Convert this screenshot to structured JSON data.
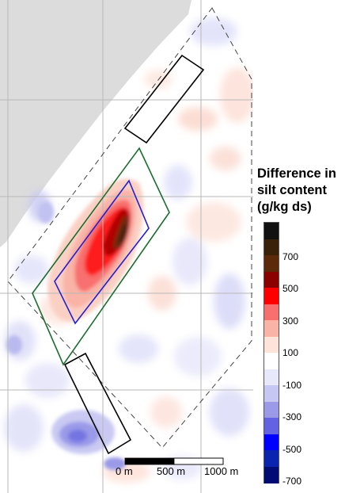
{
  "map": {
    "title_lines": [
      "Difference in",
      "silt content",
      "(g/kg ds)"
    ],
    "legend": {
      "ticks": [
        "700",
        "500",
        "300",
        "100",
        "-100",
        "-300",
        "-500",
        "-700"
      ],
      "colors": [
        "#111111",
        "#3a2208",
        "#5c2a0a",
        "#8b0000",
        "#ff0000",
        "#f86f6f",
        "#f9b3a7",
        "#fde3da",
        "#ffffff",
        "#e8e8fb",
        "#c7c7f4",
        "#9a9ae8",
        "#6262e2",
        "#0000ff",
        "#0a24b0",
        "#000c73"
      ]
    },
    "scale_bar": {
      "labels": [
        "0 m",
        "500 m",
        "1000 m"
      ]
    }
  }
}
